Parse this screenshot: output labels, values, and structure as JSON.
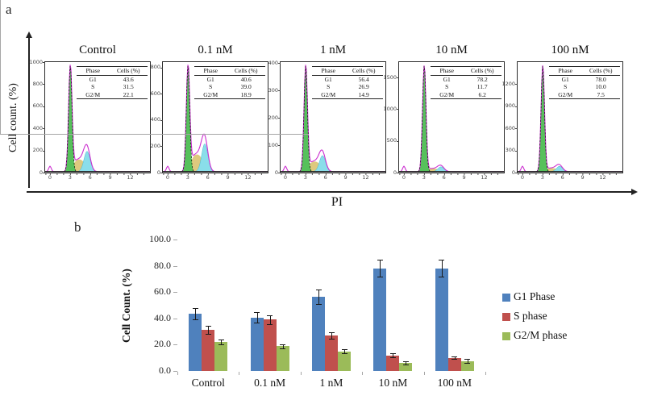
{
  "figure": {
    "panel_a_label": "a",
    "panel_b_label": "b"
  },
  "chart_data": [
    {
      "type": "area",
      "name": "flow-cytometry-cell-cycle-histograms",
      "ylabel": "Cell count. (%)",
      "xlabel": "PI",
      "x_ticks": [
        "0",
        "3",
        "6",
        "9",
        "12"
      ],
      "x_range": [
        0,
        15
      ],
      "table_headers": [
        "Phase",
        "Cells (%)"
      ],
      "panels": [
        {
          "title": "Control",
          "y_ticks": [
            "1000",
            "800",
            "600",
            "400",
            "200",
            "0"
          ],
          "y_top": 0.0,
          "rows": [
            [
              "G1",
              "43.6"
            ],
            [
              "S",
              "31.5"
            ],
            [
              "G2/M",
              "22.1"
            ]
          ],
          "shape": {
            "g1_height": 0.99,
            "s_height": 0.12,
            "g2_height": 0.19
          }
        },
        {
          "title": "0.1 nM",
          "y_ticks": [
            "800",
            "600",
            "400",
            "200",
            "0"
          ],
          "y_top": 0.05,
          "rows": [
            [
              "G1",
              "40.6"
            ],
            [
              "S",
              "39.0"
            ],
            [
              "G2/M",
              "18.9"
            ]
          ],
          "shape": {
            "g1_height": 0.99,
            "s_height": 0.17,
            "g2_height": 0.26
          }
        },
        {
          "title": "1 nM",
          "y_ticks": [
            "400",
            "300",
            "200",
            "100",
            "0"
          ],
          "y_top": 0.01,
          "rows": [
            [
              "G1",
              "56.4"
            ],
            [
              "S",
              "26.9"
            ],
            [
              "G2/M",
              "14.9"
            ]
          ],
          "shape": {
            "g1_height": 0.99,
            "s_height": 0.1,
            "g2_height": 0.15
          }
        },
        {
          "title": "10 nM",
          "y_ticks": [
            "1500",
            "1000",
            "500",
            "0"
          ],
          "y_top": 0.14,
          "rows": [
            [
              "G1",
              "78.2"
            ],
            [
              "S",
              "11.7"
            ],
            [
              "G2/M",
              "6.2"
            ]
          ],
          "shape": {
            "g1_height": 0.99,
            "s_height": 0.03,
            "g2_height": 0.045
          }
        },
        {
          "title": "100 nM",
          "y_ticks": [
            "1200",
            "900",
            "600",
            "300",
            "0"
          ],
          "y_top": 0.2,
          "rows": [
            [
              "G1",
              "78.0"
            ],
            [
              "S",
              "10.0"
            ],
            [
              "G2/M",
              "7.5"
            ]
          ],
          "shape": {
            "g1_height": 0.99,
            "s_height": 0.035,
            "g2_height": 0.05
          }
        }
      ],
      "colors": {
        "g1_fill": "#56c15b",
        "s_fill": "#ddc97e",
        "g2_fill": "#8adeea",
        "envelope": "#cc2fd0",
        "fit_line": "#111111"
      }
    },
    {
      "type": "bar",
      "name": "cell-cycle-distribution-bar-chart",
      "categories": [
        "Control",
        "0.1 nM",
        "1 nM",
        "10 nM",
        "100 nM"
      ],
      "series": [
        {
          "name": "G1 Phase",
          "color": "#4F81BD",
          "values": [
            43.6,
            40.6,
            56.4,
            78.2,
            78.0
          ],
          "errors": [
            4.5,
            4.0,
            5.5,
            6.5,
            6.5
          ]
        },
        {
          "name": "S phase",
          "color": "#C0504D",
          "values": [
            31.5,
            39.0,
            26.9,
            11.7,
            10.0
          ],
          "errors": [
            3.0,
            3.5,
            2.5,
            1.5,
            1.0
          ]
        },
        {
          "name": "G2/M phase",
          "color": "#9BBB59",
          "values": [
            22.1,
            18.9,
            14.9,
            6.2,
            7.5
          ],
          "errors": [
            2.0,
            1.5,
            1.5,
            1.0,
            1.5
          ]
        }
      ],
      "ylabel": "Cell Count. (%)",
      "ylim": [
        0,
        100
      ],
      "y_ticks": [
        "0.0",
        "20.0",
        "40.0",
        "60.0",
        "80.0",
        "100.0"
      ],
      "grid": false,
      "legend_position": "right",
      "axis_color": "#a6a6a6"
    }
  ]
}
